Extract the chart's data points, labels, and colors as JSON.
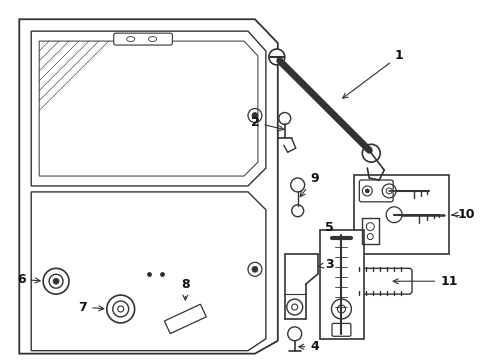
{
  "background_color": "#ffffff",
  "fig_width": 4.89,
  "fig_height": 3.6,
  "dpi": 100,
  "line_color": "#333333",
  "text_color": "#111111",
  "font_size": 9
}
